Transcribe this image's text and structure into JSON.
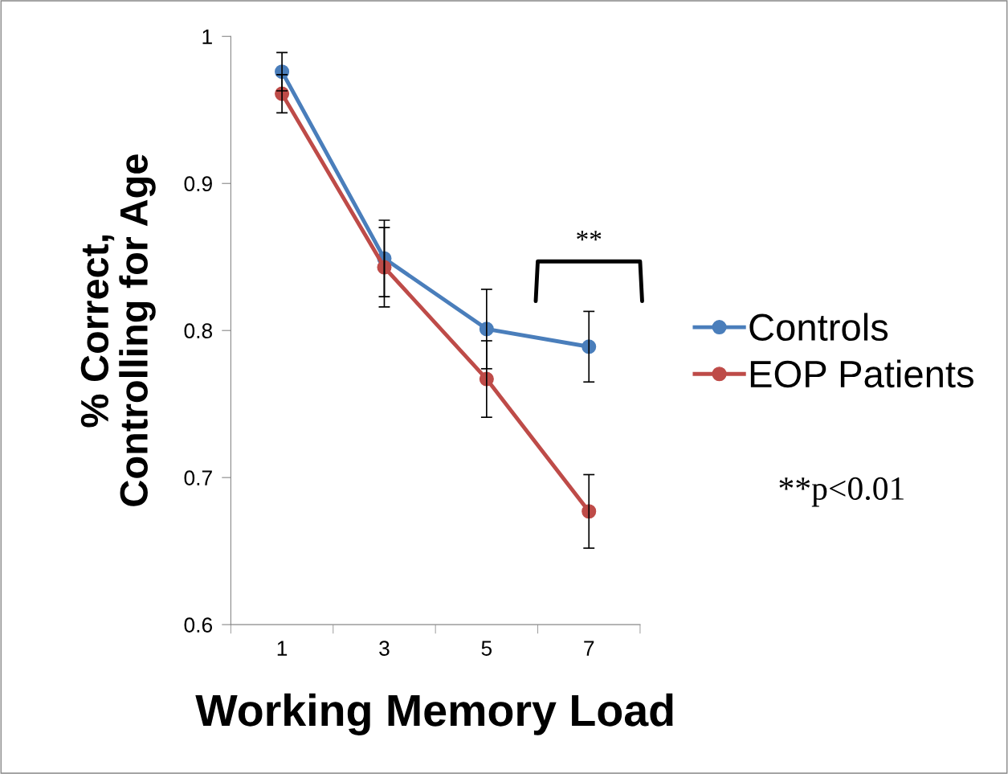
{
  "chart_data": {
    "type": "line",
    "xlabel": "Working Memory Load",
    "ylabel": "% Correct,\nControlling for Age",
    "categories": [
      "1",
      "3",
      "5",
      "7"
    ],
    "series": [
      {
        "name": "Controls",
        "color": "#4a7ebb",
        "values": [
          0.976,
          0.849,
          0.801,
          0.789
        ],
        "errors": [
          0.013,
          0.026,
          0.027,
          0.024
        ],
        "marker": "circle"
      },
      {
        "name": "EOP Patients",
        "color": "#be4b48",
        "values": [
          0.961,
          0.843,
          0.767,
          0.677
        ],
        "errors": [
          0.013,
          0.027,
          0.026,
          0.025
        ],
        "marker": "circle"
      }
    ],
    "ylim": [
      0.6,
      1
    ],
    "yticks": [
      0.6,
      0.7,
      0.8,
      0.9,
      1
    ],
    "annotations": [
      "**",
      "**p<0.01"
    ],
    "legend": "right",
    "grid": false,
    "line_style": "solid"
  }
}
